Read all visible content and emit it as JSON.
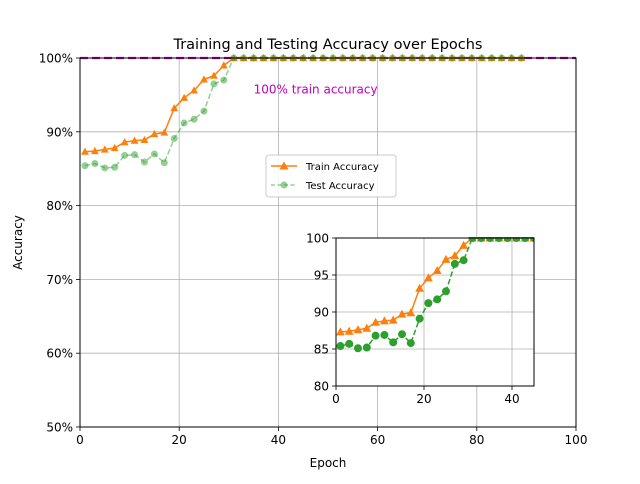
{
  "chart_data": {
    "type": "line",
    "title": "Training and Testing Accuracy over Epochs",
    "xlabel": "Epoch",
    "ylabel": "Accuracy",
    "xlim": [
      0,
      100
    ],
    "ylim": [
      50,
      100
    ],
    "xticks": [
      0,
      20,
      40,
      60,
      80,
      100
    ],
    "xtick_labels": [
      "0",
      "20",
      "40",
      "60",
      "80",
      "100"
    ],
    "yticks": [
      50,
      60,
      70,
      80,
      90,
      100
    ],
    "ytick_labels": [
      "50%",
      "60%",
      "70%",
      "80%",
      "90%",
      "100%"
    ],
    "grid": true,
    "legend_position": "center",
    "reference_line": {
      "y": 100,
      "color": "#bf00bf",
      "style": "dashed"
    },
    "annotation": {
      "text": "100% train accuracy",
      "x": 35,
      "y": 95.2,
      "color": "#bf00bf"
    },
    "series": [
      {
        "name": "Train Accuracy",
        "color": "#ff7f0e",
        "marker": "triangle",
        "line_style": "solid",
        "x": [
          1,
          3,
          5,
          7,
          9,
          11,
          13,
          15,
          17,
          19,
          21,
          23,
          25,
          27,
          29,
          31,
          33,
          35,
          37,
          39,
          41,
          43,
          45,
          47,
          49,
          51,
          53,
          55,
          57,
          59,
          61,
          63,
          65,
          67,
          69,
          71,
          73,
          75,
          77,
          79,
          81,
          83,
          85,
          87,
          89
        ],
        "y": [
          87.3,
          87.4,
          87.6,
          87.8,
          88.6,
          88.8,
          88.9,
          89.7,
          89.9,
          93.2,
          94.6,
          95.6,
          97.1,
          97.6,
          99.0,
          100,
          100,
          100,
          100,
          100,
          100,
          100,
          100,
          100,
          100,
          100,
          100,
          100,
          100,
          100,
          100,
          100,
          100,
          100,
          100,
          100,
          100,
          100,
          100,
          100,
          100,
          100,
          100,
          100,
          100
        ]
      },
      {
        "name": "Test Accuracy",
        "color": "#2ca02c",
        "marker": "circle",
        "line_style": "dashed",
        "x": [
          1,
          3,
          5,
          7,
          9,
          11,
          13,
          15,
          17,
          19,
          21,
          23,
          25,
          27,
          29,
          31,
          33,
          35,
          37,
          39,
          41,
          43,
          45,
          47,
          49,
          51,
          53,
          55,
          57,
          59,
          61,
          63,
          65,
          67,
          69,
          71,
          73,
          75,
          77,
          79,
          81,
          83,
          85,
          87,
          89
        ],
        "y": [
          85.4,
          85.7,
          85.1,
          85.2,
          86.8,
          86.9,
          85.9,
          87.0,
          85.8,
          89.1,
          91.2,
          91.7,
          92.8,
          96.5,
          97.0,
          100,
          100,
          100,
          100,
          100,
          100,
          100,
          100,
          100,
          100,
          100,
          100,
          100,
          100,
          100,
          100,
          100,
          100,
          100,
          100,
          100,
          100,
          100,
          100,
          100,
          100,
          100,
          100,
          100,
          100
        ]
      }
    ],
    "inset": {
      "xlim": [
        0,
        45
      ],
      "ylim": [
        80,
        100
      ],
      "xticks": [
        0,
        20,
        40
      ],
      "xtick_labels": [
        "0",
        "20",
        "40"
      ],
      "yticks": [
        80,
        85,
        90,
        95,
        100
      ],
      "ytick_labels": [
        "80",
        "85",
        "90",
        "95",
        "100"
      ],
      "grid": true
    }
  }
}
